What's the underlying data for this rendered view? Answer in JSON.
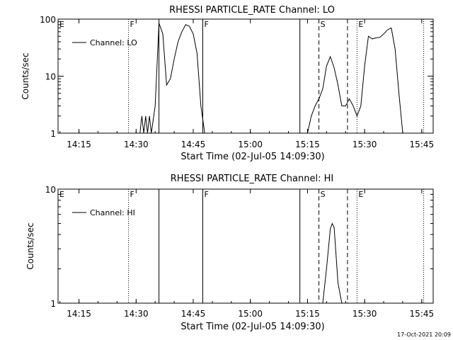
{
  "footer": {
    "date_stamp": "17-Oct-2021 20:09"
  },
  "chart_data": [
    {
      "type": "line",
      "title": "RHESSI PARTICLE_RATE Channel: LO",
      "xlabel": "Start Time (02-Jul-05 14:09:30)",
      "ylabel": "Counts/sec",
      "y_scale": "log",
      "xlim": [
        "14:09:30",
        "15:48:00"
      ],
      "ylim": [
        1,
        100
      ],
      "x_tick_labels": [
        "14:15",
        "14:30",
        "14:45",
        "15:00",
        "15:15",
        "15:30",
        "15:45"
      ],
      "y_tick_labels": [
        "1",
        "10",
        "100"
      ],
      "legend": {
        "position": "top-left",
        "entries": [
          "Channel: LO"
        ]
      },
      "series": [
        {
          "name": "Channel: LO",
          "x": [
            "14:31:00",
            "14:31:30",
            "14:32:00",
            "14:32:30",
            "14:33:00",
            "14:33:30",
            "14:34:00",
            "14:35:00",
            "14:36:00",
            "14:37:00",
            "14:38:00",
            "14:39:00",
            "14:40:00",
            "14:41:00",
            "14:42:00",
            "14:43:00",
            "14:44:00",
            "14:45:00",
            "14:46:00",
            "14:47:00",
            "14:48:00",
            "14:49:00",
            "15:15:00",
            "15:16:00",
            "15:17:00",
            "15:18:00",
            "15:19:00",
            "15:20:00",
            "15:21:00",
            "15:22:00",
            "15:23:00",
            "15:24:00",
            "15:25:00",
            "15:26:00",
            "15:27:00",
            "15:28:00",
            "15:29:00",
            "15:30:00",
            "15:31:00",
            "15:32:00",
            "15:33:00",
            "15:34:00",
            "15:35:00",
            "15:36:00",
            "15:37:00",
            "15:38:00",
            "15:39:00",
            "15:40:00"
          ],
          "values": [
            1,
            2,
            1,
            2,
            1,
            2,
            1,
            3,
            85,
            55,
            7,
            9,
            20,
            40,
            60,
            80,
            75,
            55,
            25,
            3,
            1,
            1,
            1,
            2,
            3,
            4,
            6,
            15,
            22,
            14,
            7,
            3,
            3,
            4,
            3,
            2,
            3,
            15,
            50,
            45,
            47,
            48,
            55,
            65,
            70,
            30,
            5,
            1
          ]
        }
      ],
      "markers": [
        {
          "label": "E",
          "x": "14:09:30",
          "style": "solid"
        },
        {
          "label": "F",
          "x": "14:28:00",
          "style": "dotted"
        },
        {
          "label": "",
          "x": "14:36:00",
          "style": "solid"
        },
        {
          "label": "F",
          "x": "14:47:30",
          "style": "solid"
        },
        {
          "label": "",
          "x": "15:13:00",
          "style": "solid"
        },
        {
          "label": "S",
          "x": "15:18:00",
          "style": "dashed"
        },
        {
          "label": "",
          "x": "15:25:30",
          "style": "dashed"
        },
        {
          "label": "E",
          "x": "15:28:00",
          "style": "dotted"
        },
        {
          "label": "",
          "x": "15:45:30",
          "style": "dotted"
        }
      ]
    },
    {
      "type": "line",
      "title": "RHESSI PARTICLE_RATE Channel: HI",
      "xlabel": "Start Time (02-Jul-05 14:09:30)",
      "ylabel": "Counts/sec",
      "y_scale": "log",
      "xlim": [
        "14:09:30",
        "15:48:00"
      ],
      "ylim": [
        1,
        10
      ],
      "x_tick_labels": [
        "14:15",
        "14:30",
        "14:45",
        "15:00",
        "15:15",
        "15:30",
        "15:45"
      ],
      "y_tick_labels": [
        "1",
        "10"
      ],
      "legend": {
        "position": "top-left",
        "entries": [
          "Channel: HI"
        ]
      },
      "series": [
        {
          "name": "Channel: HI",
          "x": [
            "15:19:00",
            "15:20:00",
            "15:21:00",
            "15:21:30",
            "15:22:00",
            "15:23:00",
            "15:24:00"
          ],
          "values": [
            1,
            2,
            4.5,
            5,
            4.6,
            1.5,
            1
          ]
        }
      ],
      "markers": [
        {
          "label": "E",
          "x": "14:09:30",
          "style": "solid"
        },
        {
          "label": "F",
          "x": "14:28:00",
          "style": "dotted"
        },
        {
          "label": "",
          "x": "14:36:00",
          "style": "solid"
        },
        {
          "label": "F",
          "x": "14:47:30",
          "style": "solid"
        },
        {
          "label": "",
          "x": "15:13:00",
          "style": "solid"
        },
        {
          "label": "S",
          "x": "15:18:00",
          "style": "dashed"
        },
        {
          "label": "",
          "x": "15:25:30",
          "style": "dashed"
        },
        {
          "label": "E",
          "x": "15:28:00",
          "style": "dotted"
        },
        {
          "label": "",
          "x": "15:45:30",
          "style": "dotted"
        }
      ]
    }
  ]
}
